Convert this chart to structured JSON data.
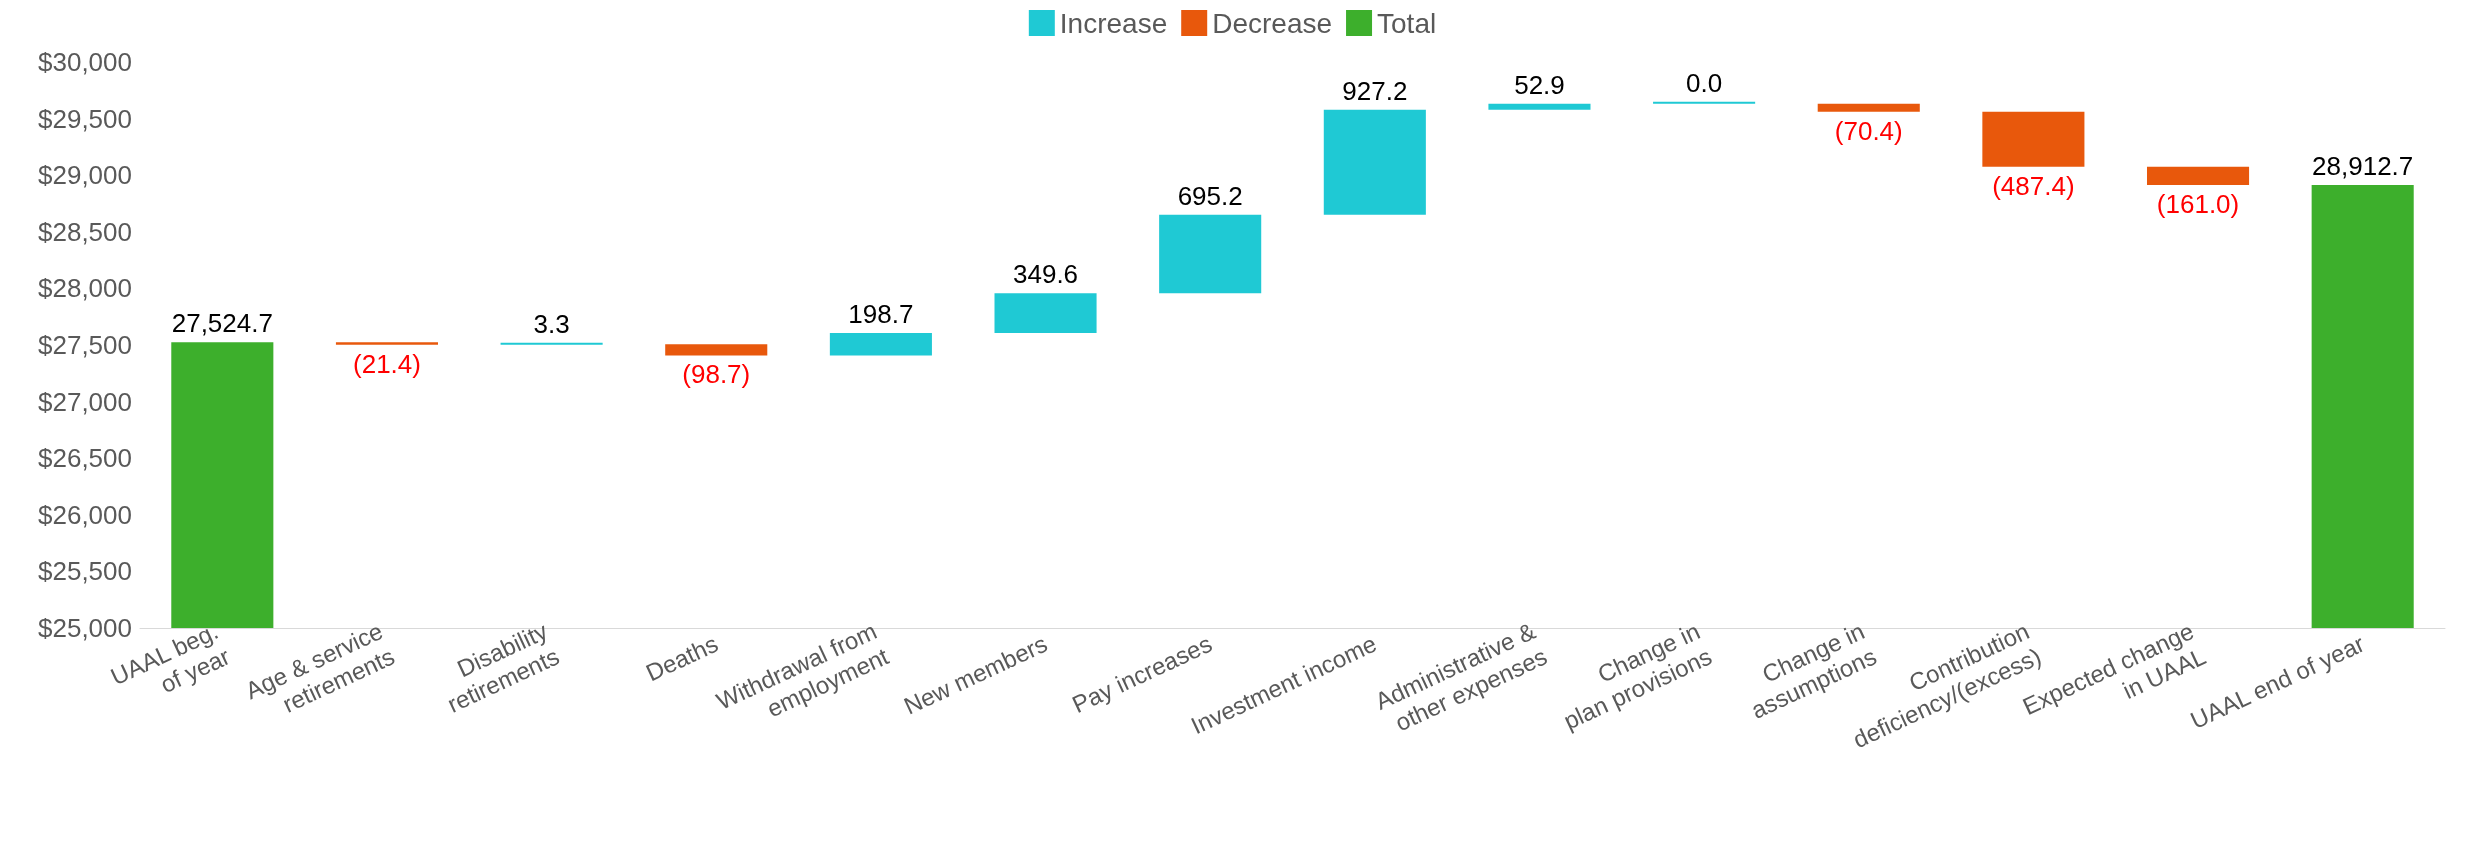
{
  "chart_data": {
    "type": "bar",
    "legend": "top",
    "categories": [
      "UAAL beg.\nof year",
      "Age & service\nretirements",
      "Disability\nretirements",
      "Deaths",
      "Withdrawal from\nemployment",
      "New members",
      "Pay increases",
      "Investment income",
      "Administrative &\nother expenses",
      "Change in\nplan provisions",
      "Change in\nassumptions",
      "Contribution\ndeficiency/(excess)",
      "Expected change\nin UAAL",
      "UAAL end of year"
    ],
    "series": [
      {
        "name": "Increase",
        "color": "#1fc9d4",
        "base": [
          null,
          null,
          27503.3,
          null,
          27407.9,
          27606.6,
          27956.2,
          28651.4,
          29578.6,
          29631.5,
          null,
          null,
          null,
          null
        ],
        "values": [
          null,
          null,
          3.3,
          null,
          198.7,
          349.6,
          695.2,
          927.2,
          52.9,
          0.0,
          null,
          null,
          null,
          null
        ],
        "value_labels": [
          null,
          null,
          "3.3",
          null,
          "198.7",
          "349.6",
          "695.2",
          "927.2",
          "52.9",
          "0.0",
          null,
          null,
          null,
          null
        ]
      },
      {
        "name": "Decrease",
        "color": "#e8580c",
        "base": [
          null,
          27524.7,
          null,
          27506.6,
          null,
          null,
          null,
          null,
          null,
          null,
          29631.5,
          29561.1,
          29073.7,
          null
        ],
        "values": [
          null,
          -21.4,
          null,
          -98.7,
          null,
          null,
          null,
          null,
          null,
          null,
          -70.4,
          -487.4,
          -161.0,
          null
        ],
        "value_labels": [
          null,
          "(21.4)",
          null,
          "(98.7)",
          null,
          null,
          null,
          null,
          null,
          null,
          "(70.4)",
          "(487.4)",
          "(161.0)",
          null
        ]
      },
      {
        "name": "Total",
        "color": "#3daf2c",
        "values": [
          27524.7,
          null,
          null,
          null,
          null,
          null,
          null,
          null,
          null,
          null,
          null,
          null,
          null,
          28912.7
        ],
        "value_labels": [
          "27,524.7",
          null,
          null,
          null,
          null,
          null,
          null,
          null,
          null,
          null,
          null,
          null,
          null,
          "28,912.7"
        ]
      }
    ],
    "ylim": [
      25000,
      30000
    ],
    "yticks": [
      {
        "value": 25000,
        "label": "$25,000"
      },
      {
        "value": 25500,
        "label": "$25,500"
      },
      {
        "value": 26000,
        "label": "$26,000"
      },
      {
        "value": 26500,
        "label": "$26,500"
      },
      {
        "value": 27000,
        "label": "$27,000"
      },
      {
        "value": 27500,
        "label": "$27,500"
      },
      {
        "value": 28000,
        "label": "$28,000"
      },
      {
        "value": 28500,
        "label": "$28,500"
      },
      {
        "value": 29000,
        "label": "$29,000"
      },
      {
        "value": 29500,
        "label": "$29,500"
      },
      {
        "value": 30000,
        "label": "$30,000"
      }
    ],
    "grid": false
  }
}
